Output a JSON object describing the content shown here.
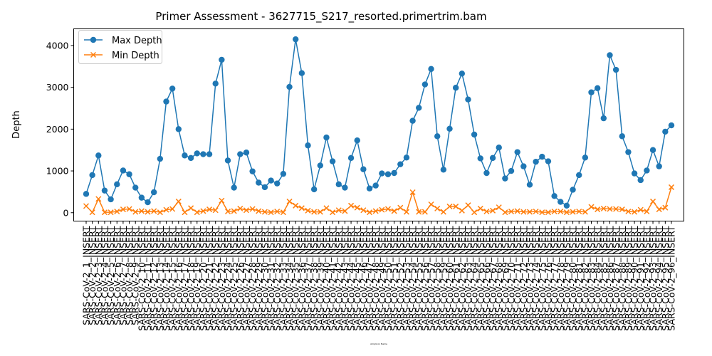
{
  "chart_data": {
    "type": "line",
    "title": "Primer Assessment - 3627715_S217_resorted.primertrim.bam",
    "xlabel": "Amplicon Name",
    "ylabel": "Depth",
    "ylim": [
      -200,
      4400
    ],
    "yticks": [
      0,
      1000,
      2000,
      3000,
      4000
    ],
    "grid": false,
    "legend_position": "top-left",
    "categories": [
      "SARS-CoV-2_1_INSERT",
      "SARS-CoV-2_2_INSERT",
      "SARS-CoV-2_3_INSERT",
      "SARS-CoV-2_4_INSERT",
      "SARS-CoV-2_5_INSERT",
      "SARS-CoV-2_6_INSERT",
      "SARS-CoV-2_7_INSERT",
      "SARS-CoV-2_8_INSERT",
      "SARS-CoV-2_9_INSERT",
      "SARS-CoV-2_10_INSERT",
      "SARS-CoV-2_11_INSERT",
      "SARS-CoV-2_12_INSERT",
      "SARS-CoV-2_13_INSERT",
      "SARS-CoV-2_14_INSERT",
      "SARS-CoV-2_15_INSERT",
      "SARS-CoV-2_16_INSERT",
      "SARS-CoV-2_17_INSERT",
      "SARS-CoV-2_18_INSERT",
      "SARS-CoV-2_19_INSERT",
      "SARS-CoV-2_20_INSERT",
      "SARS-CoV-2_21_INSERT",
      "SARS-CoV-2_22_INSERT",
      "SARS-CoV-2_23_INSERT",
      "SARS-CoV-2_24_INSERT",
      "SARS-CoV-2_25_INSERT",
      "SARS-CoV-2_26_INSERT",
      "SARS-CoV-2_27_INSERT",
      "SARS-CoV-2_28_INSERT",
      "SARS-CoV-2_29_INSERT",
      "SARS-CoV-2_30_INSERT",
      "SARS-CoV-2_31_INSERT",
      "SARS-CoV-2_32_INSERT",
      "SARS-CoV-2_33_INSERT",
      "SARS-CoV-2_34_INSERT",
      "SARS-CoV-2_35_INSERT",
      "SARS-CoV-2_36_INSERT",
      "SARS-CoV-2_37_INSERT",
      "SARS-CoV-2_38_INSERT",
      "SARS-CoV-2_39_INSERT",
      "SARS-CoV-2_40_INSERT",
      "SARS-CoV-2_41_INSERT",
      "SARS-CoV-2_42_INSERT",
      "SARS-CoV-2_43_INSERT",
      "SARS-CoV-2_44_INSERT",
      "SARS-CoV-2_45_INSERT",
      "SARS-CoV-2_46_INSERT",
      "SARS-CoV-2_47_INSERT",
      "SARS-CoV-2_48_INSERT",
      "SARS-CoV-2_49_INSERT",
      "SARS-CoV-2_50_INSERT",
      "SARS-CoV-2_51_INSERT",
      "SARS-CoV-2_52_INSERT",
      "SARS-CoV-2_53_INSERT",
      "SARS-CoV-2_54_INSERT",
      "SARS-CoV-2_55_INSERT",
      "SARS-CoV-2_56_INSERT",
      "SARS-CoV-2_57_INSERT",
      "SARS-CoV-2_58_INSERT",
      "SARS-CoV-2_59_INSERT",
      "SARS-CoV-2_60_INSERT",
      "SARS-CoV-2_61_INSERT",
      "SARS-CoV-2_62_INSERT",
      "SARS-CoV-2_63_INSERT",
      "SARS-CoV-2_64_INSERT",
      "SARS-CoV-2_65_INSERT",
      "SARS-CoV-2_66_INSERT",
      "SARS-CoV-2_67_INSERT",
      "SARS-CoV-2_68_INSERT",
      "SARS-CoV-2_69_INSERT",
      "SARS-CoV-2_70_INSERT",
      "SARS-CoV-2_71_INSERT",
      "SARS-CoV-2_72_INSERT",
      "SARS-CoV-2_73_INSERT",
      "SARS-CoV-2_74_INSERT",
      "SARS-CoV-2_75_INSERT",
      "SARS-CoV-2_76_INSERT",
      "SARS-CoV-2_77_INSERT",
      "SARS-CoV-2_78_INSERT",
      "SARS-CoV-2_79_INSERT",
      "SARS-CoV-2_80_INSERT",
      "SARS-CoV-2_81_INSERT",
      "SARS-CoV-2_82_INSERT",
      "SARS-CoV-2_83_INSERT",
      "SARS-CoV-2_84_INSERT",
      "SARS-CoV-2_85_INSERT",
      "SARS-CoV-2_86_INSERT",
      "SARS-CoV-2_87_INSERT",
      "SARS-CoV-2_88_INSERT",
      "SARS-CoV-2_89_INSERT",
      "SARS-CoV-2_90_INSERT",
      "SARS-CoV-2_91_INSERT",
      "SARS-CoV-2_92_INSERT",
      "SARS-CoV-2_93_INSERT",
      "SARS-CoV-2_94_INSERT",
      "SARS-CoV-2_95_INSERT",
      "SARS-CoV-2_96_INSERT"
    ],
    "series": [
      {
        "name": "Max Depth",
        "color": "#1f77b4",
        "marker": "circle",
        "values": [
          450,
          900,
          1370,
          530,
          320,
          680,
          1010,
          920,
          600,
          360,
          250,
          490,
          1290,
          2660,
          2970,
          2000,
          1370,
          1310,
          1420,
          1400,
          1400,
          3090,
          3660,
          1250,
          600,
          1400,
          1440,
          990,
          720,
          610,
          770,
          700,
          930,
          3010,
          4150,
          3340,
          1610,
          560,
          1130,
          1800,
          1230,
          680,
          600,
          1310,
          1730,
          1040,
          580,
          650,
          940,
          920,
          950,
          1160,
          1320,
          2200,
          2510,
          3070,
          3440,
          1830,
          1030,
          2010,
          2990,
          3330,
          2710,
          1870,
          1300,
          950,
          1310,
          1560,
          820,
          1000,
          1450,
          1110,
          670,
          1220,
          1340,
          1230,
          400,
          260,
          170,
          550,
          900,
          1320,
          2880,
          2980,
          2260,
          3770,
          3420,
          1830,
          1450,
          940,
          780,
          1010,
          1500,
          1110,
          1940,
          2090
        ]
      },
      {
        "name": "Min Depth",
        "color": "#ff7f0e",
        "marker": "x",
        "values": [
          160,
          10,
          330,
          10,
          10,
          30,
          80,
          90,
          20,
          40,
          20,
          40,
          10,
          70,
          90,
          270,
          10,
          110,
          10,
          40,
          80,
          60,
          290,
          30,
          40,
          100,
          60,
          90,
          40,
          20,
          10,
          30,
          10,
          270,
          170,
          110,
          50,
          20,
          20,
          110,
          10,
          60,
          40,
          170,
          120,
          60,
          10,
          40,
          70,
          90,
          40,
          120,
          20,
          490,
          20,
          20,
          200,
          100,
          20,
          150,
          150,
          50,
          180,
          10,
          100,
          30,
          50,
          130,
          10,
          30,
          40,
          20,
          20,
          30,
          10,
          10,
          30,
          30,
          10,
          20,
          30,
          20,
          140,
          80,
          100,
          90,
          90,
          80,
          30,
          20,
          70,
          30,
          270,
          80,
          120,
          610
        ]
      }
    ]
  }
}
